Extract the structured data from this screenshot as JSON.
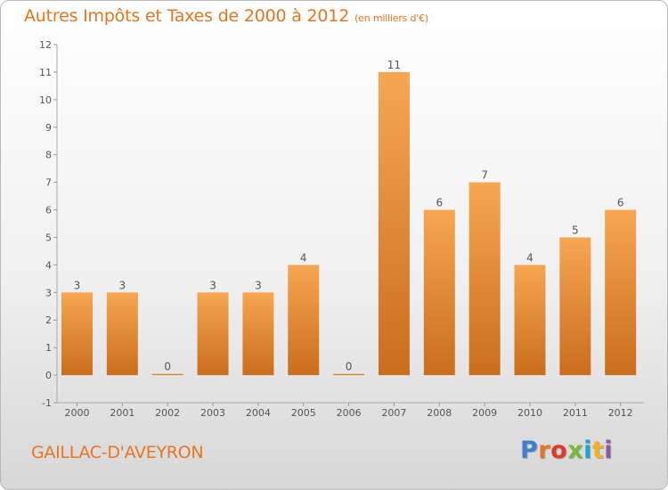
{
  "chart_data": {
    "type": "bar",
    "title": "Autres Impôts et Taxes de 2000 à 2012",
    "subtitle": "(en milliers d'€)",
    "categories": [
      "2000",
      "2001",
      "2002",
      "2003",
      "2004",
      "2005",
      "2006",
      "2007",
      "2008",
      "2009",
      "2010",
      "2011",
      "2012"
    ],
    "values": [
      3,
      3,
      0,
      3,
      3,
      4,
      0,
      11,
      6,
      7,
      4,
      5,
      6
    ],
    "data_labels": [
      "3",
      "3",
      "0",
      "3",
      "3",
      "4",
      "0",
      "11",
      "6",
      "7",
      "4",
      "5",
      "6"
    ],
    "ylim": [
      -1,
      12
    ],
    "yticks": [
      -1,
      0,
      1,
      2,
      3,
      4,
      5,
      6,
      7,
      8,
      9,
      10,
      11,
      12
    ],
    "ytick_labels": [
      "-1",
      "0",
      "1",
      "2",
      "3",
      "4",
      "5",
      "6",
      "7",
      "8",
      "9",
      "10",
      "11",
      "12"
    ],
    "grid": false,
    "bar_color_top": "#f7a651",
    "bar_color_bottom": "#c96e1c",
    "accent_color": "#e87520"
  },
  "footer": {
    "city": "GAILLAC-D'AVEYRON",
    "brand": "Proxiti",
    "brand_colors": [
      "#3f7fd0",
      "#e87520",
      "#e03b2a",
      "#7bb83a",
      "#1ca4d8",
      "#f2b21f",
      "#8b5aa5"
    ]
  }
}
